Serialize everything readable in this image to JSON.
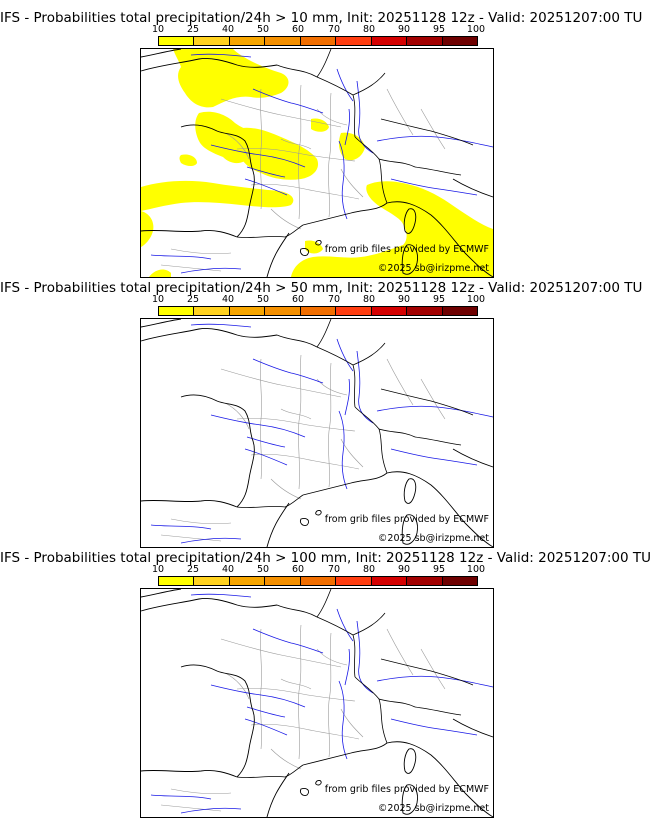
{
  "colors": {
    "scale": [
      "#ffff00",
      "#ffd21f",
      "#f7a600",
      "#f59000",
      "#f16e00",
      "#ff3d10",
      "#d40000",
      "#a20000",
      "#6e0000"
    ],
    "precip": "#ffff00",
    "borders": "#000000",
    "regions": "#9a9a9a",
    "rivers": "#1a1ae6"
  },
  "scale_ticks": [
    "10",
    "25",
    "40",
    "50",
    "60",
    "70",
    "80",
    "90",
    "95",
    "100"
  ],
  "panels": [
    {
      "title": "IFS - Probabilities total precipitation/24h > 10 mm, Init: 20251128 12z - Valid: 20251207:00 TU",
      "source_credit": "from grib files provided by ECMWF",
      "copyright": "©2025 sb@irizpme.net",
      "precip_shading": true
    },
    {
      "title": "IFS - Probabilities total precipitation/24h > 50 mm, Init: 20251128 12z - Valid: 20251207:00 TU",
      "source_credit": "from grib files provided by ECMWF",
      "copyright": "©2025 sb@irizpme.net",
      "precip_shading": false
    },
    {
      "title": "IFS - Probabilities total precipitation/24h > 100 mm, Init: 20251128 12z - Valid: 20251207:00 TU",
      "source_credit": "from grib files provided by ECMWF",
      "copyright": "©2025 sb@irizpme.net",
      "precip_shading": false
    }
  ]
}
